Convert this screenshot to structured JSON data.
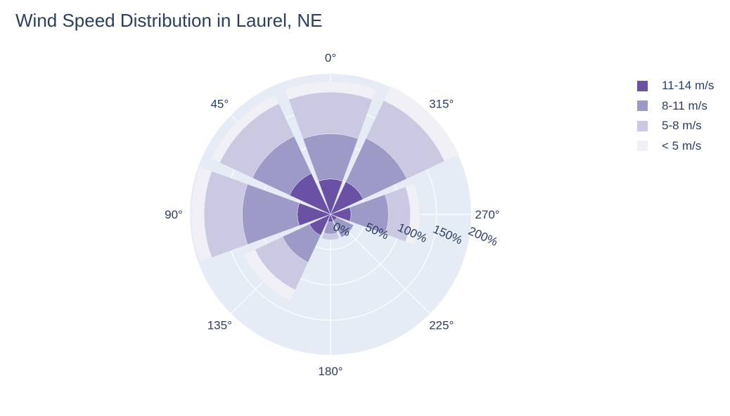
{
  "chart_data": {
    "type": "barpolar",
    "title": "Wind Speed Distribution in Laurel, NE",
    "angular_axis": {
      "direction": "counterclockwise",
      "rotation": 90,
      "ticks": [
        0,
        45,
        90,
        135,
        180,
        225,
        270,
        315
      ],
      "tick_labels": [
        "0°",
        "45°",
        "90°",
        "135°",
        "180°",
        "225°",
        "270°",
        "315°"
      ]
    },
    "radial_axis": {
      "range": [
        0,
        200
      ],
      "ticks": [
        0,
        50,
        100,
        150,
        200
      ],
      "tick_labels": [
        "0%",
        "50%",
        "100%",
        "150%",
        "200%"
      ]
    },
    "directions": [
      0,
      45,
      90,
      135,
      180,
      225,
      270,
      315
    ],
    "bar_width_deg": 40,
    "series": [
      {
        "name": "11-14 m/s",
        "color": "#6a51a3",
        "values": [
          50,
          64,
          47,
          33,
          11,
          10,
          29,
          51
        ]
      },
      {
        "name": "8-11 m/s",
        "color": "#9e9ac8",
        "values": [
          64,
          58,
          78,
          42,
          17,
          26,
          53,
          68
        ]
      },
      {
        "name": "5-8 m/s",
        "color": "#cbc9e2",
        "values": [
          59,
          51,
          54,
          43,
          8,
          0,
          31,
          59
        ]
      },
      {
        "name": "< 5 m/s",
        "color": "#f2f0f7",
        "values": [
          15,
          13,
          18,
          17,
          0,
          0,
          13,
          22
        ]
      }
    ],
    "legend": {
      "position": "top-right",
      "order": [
        "11-14 m/s",
        "8-11 m/s",
        "5-8 m/s",
        "< 5 m/s"
      ]
    }
  }
}
